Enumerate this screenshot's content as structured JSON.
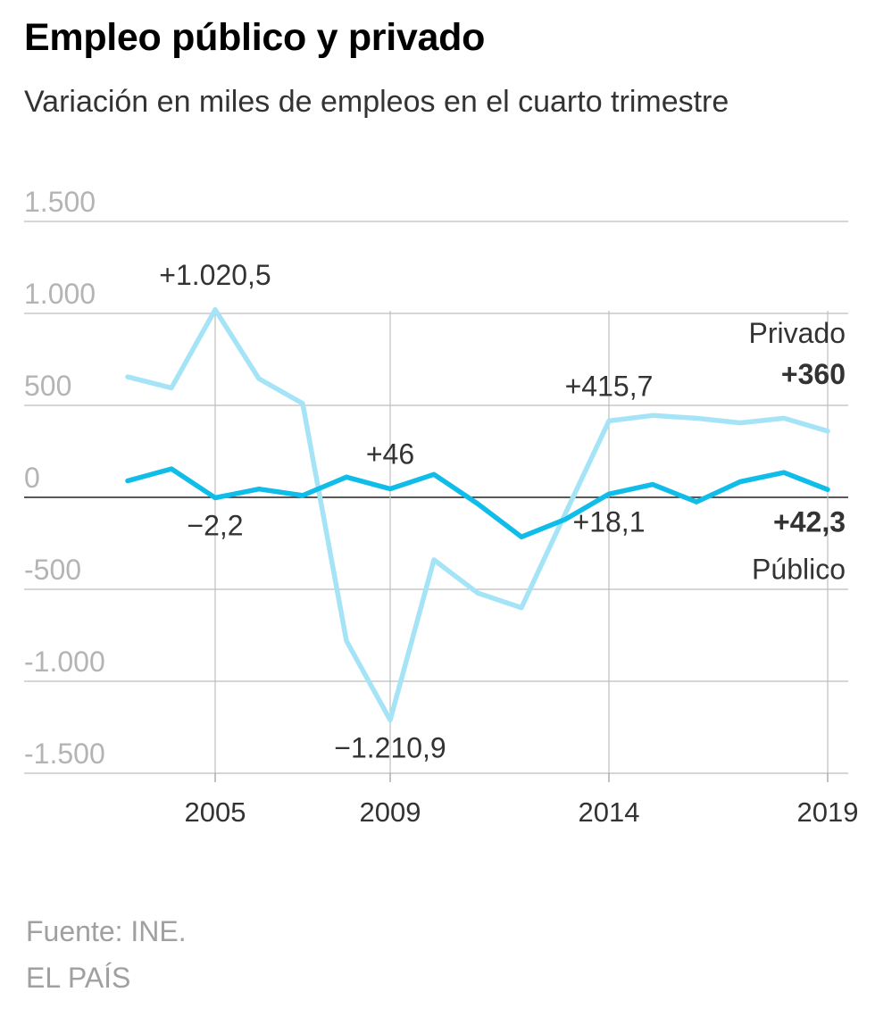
{
  "title": "Empleo público y privado",
  "subtitle": "Variación en miles de empleos en el cuarto trimestre",
  "footer": {
    "source": "Fuente: INE.",
    "brand": "EL PAÍS"
  },
  "chart_data": {
    "type": "line",
    "x": [
      2003,
      2004,
      2005,
      2006,
      2007,
      2008,
      2009,
      2010,
      2011,
      2012,
      2013,
      2014,
      2015,
      2016,
      2017,
      2018,
      2019
    ],
    "series": [
      {
        "name": "Privado",
        "color": "#a5e4f7",
        "values": [
          655,
          595,
          1020.5,
          645,
          510,
          -780,
          -1210.9,
          -340,
          -520,
          -600,
          -90,
          415.7,
          445,
          430,
          405,
          430,
          360
        ]
      },
      {
        "name": "Público",
        "color": "#10bde9",
        "values": [
          90,
          155,
          -2.2,
          45,
          10,
          110,
          46,
          125,
          -35,
          -215,
          -120,
          18.1,
          70,
          -25,
          85,
          135,
          42.3
        ]
      }
    ],
    "ylim": [
      -1500,
      1500
    ],
    "yticks": [
      1500,
      1000,
      500,
      0,
      -500,
      -1000,
      -1500
    ],
    "ytick_labels": [
      "1.500",
      "1.000",
      "500",
      "0",
      "-500",
      "-1.000",
      "-1.500"
    ],
    "xtick_years": [
      2005,
      2009,
      2014,
      2019
    ],
    "xtick_labels": [
      "2005",
      "2009",
      "2014",
      "2019"
    ],
    "annotations": [
      {
        "text": "+1.020,5",
        "series": "Privado",
        "x": 2005,
        "position": "above"
      },
      {
        "text": "−1.210,9",
        "series": "Privado",
        "x": 2009,
        "position": "below"
      },
      {
        "text": "+415,7",
        "series": "Privado",
        "x": 2014,
        "position": "above"
      },
      {
        "text": "−2,2",
        "series": "Público",
        "x": 2005,
        "position": "below"
      },
      {
        "text": "+46",
        "series": "Público",
        "x": 2009,
        "position": "above"
      },
      {
        "text": "+18,1",
        "series": "Público",
        "x": 2014,
        "position": "below"
      }
    ],
    "end_labels": {
      "privado_name": "Privado",
      "privado_value": "+360",
      "publico_value": "+42,3",
      "publico_name": "Público"
    },
    "grid": true
  }
}
